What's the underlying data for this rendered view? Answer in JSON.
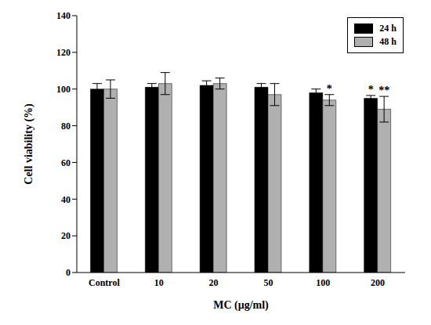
{
  "chart_data": {
    "type": "bar",
    "x_label": "MC (μg/ml)",
    "y_label": "Cell viability (%)",
    "categories": [
      "Control",
      "10",
      "20",
      "50",
      "100",
      "200"
    ],
    "series": [
      {
        "name": "24 h",
        "color": "#000000",
        "values": [
          100,
          101,
          102,
          101,
          98,
          95
        ],
        "errors": [
          3,
          2,
          2.5,
          2,
          2,
          1.5
        ],
        "annotations": [
          null,
          null,
          null,
          null,
          null,
          "*"
        ]
      },
      {
        "name": "48 h",
        "color": "#b0b0b0",
        "values": [
          100,
          103,
          103,
          97,
          94,
          89
        ],
        "errors": [
          5,
          6,
          3,
          6,
          3,
          7
        ],
        "annotations": [
          null,
          null,
          null,
          null,
          "*",
          "**"
        ]
      }
    ],
    "ylim": [
      0,
      140
    ],
    "yticks": [
      0,
      20,
      40,
      60,
      80,
      100,
      120,
      140
    ],
    "grid": false,
    "legend": "upper right"
  }
}
